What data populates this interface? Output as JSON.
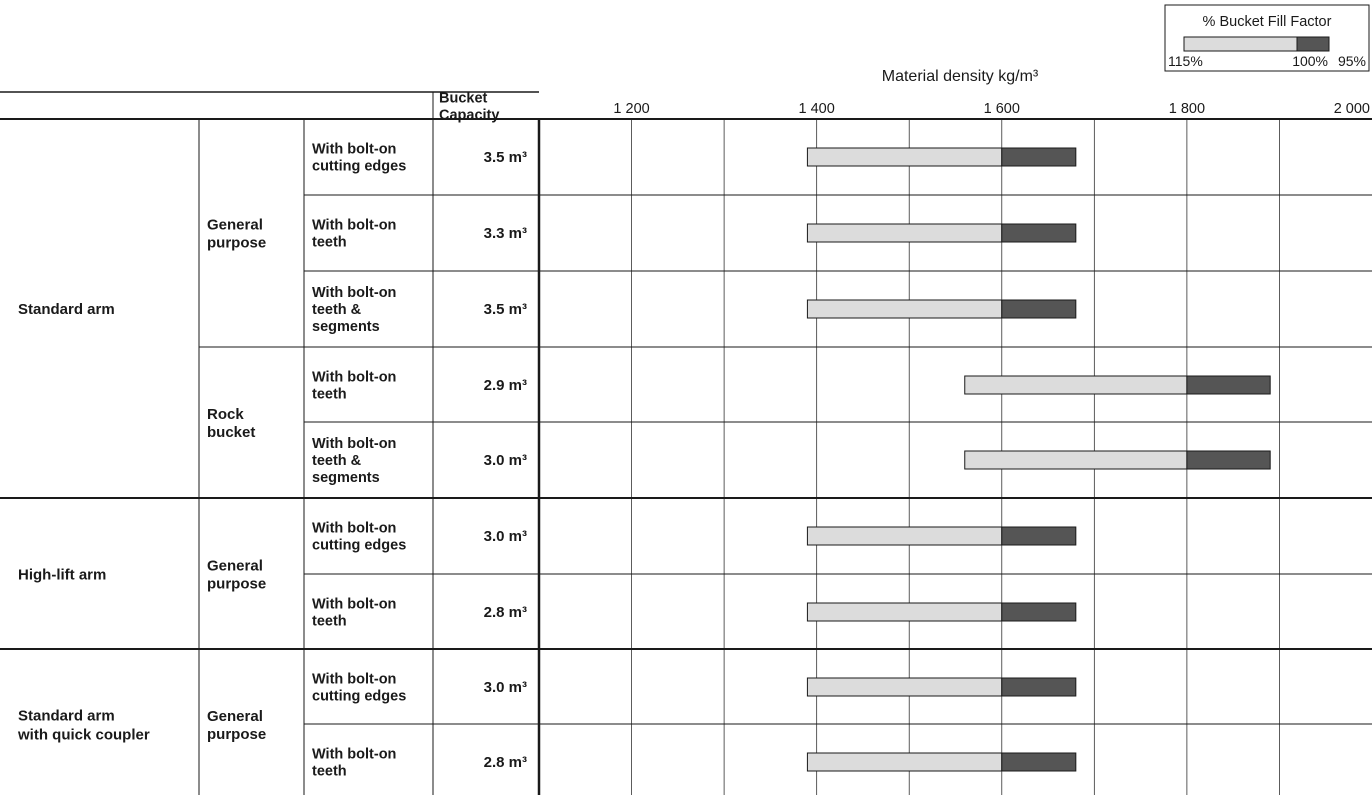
{
  "legend": {
    "title": "% Bucket Fill Factor",
    "labels": [
      "115%",
      "100%",
      "95%"
    ],
    "colors": {
      "fill_115": "#dcdcdc",
      "fill_95": "#555555",
      "border": "#1a1a1a"
    }
  },
  "table": {
    "header_capacity_line1": "Bucket",
    "header_capacity_line2": "Capacity",
    "groups": [
      {
        "arm": [
          "Standard arm"
        ],
        "subgroups": [
          {
            "type": [
              "General",
              "purpose"
            ],
            "rows": [
              0,
              1,
              2
            ]
          },
          {
            "type": [
              "Rock",
              "bucket"
            ],
            "rows": [
              3,
              4
            ]
          }
        ]
      },
      {
        "arm": [
          "High-lift arm"
        ],
        "subgroups": [
          {
            "type": [
              "General",
              "purpose"
            ],
            "rows": [
              5,
              6
            ]
          }
        ]
      },
      {
        "arm": [
          "Standard arm",
          "with quick coupler"
        ],
        "subgroups": [
          {
            "type": [
              "General",
              "purpose"
            ],
            "rows": [
              7,
              8
            ]
          }
        ]
      }
    ],
    "rows": [
      {
        "config": [
          "With bolt-on",
          "cutting edges"
        ],
        "capacity": "3.5 m³"
      },
      {
        "config": [
          "With bolt-on",
          "teeth"
        ],
        "capacity": "3.3 m³"
      },
      {
        "config": [
          "With bolt-on",
          "teeth &",
          "segments"
        ],
        "capacity": "3.5 m³"
      },
      {
        "config": [
          "With bolt-on",
          "teeth"
        ],
        "capacity": "2.9 m³"
      },
      {
        "config": [
          "With bolt-on",
          "teeth &",
          "segments"
        ],
        "capacity": "3.0 m³"
      },
      {
        "config": [
          "With bolt-on",
          "cutting edges"
        ],
        "capacity": "3.0 m³"
      },
      {
        "config": [
          "With bolt-on",
          "teeth"
        ],
        "capacity": "2.8 m³"
      },
      {
        "config": [
          "With bolt-on",
          "cutting edges"
        ],
        "capacity": "3.0 m³"
      },
      {
        "config": [
          "With bolt-on",
          "teeth"
        ],
        "capacity": "2.8 m³"
      }
    ]
  },
  "chart_data": {
    "type": "bar",
    "orientation": "horizontal",
    "xlabel": "Material density kg/m³",
    "xlim": [
      1100,
      2000
    ],
    "xticks": [
      1200,
      1400,
      1600,
      1800,
      2000
    ],
    "xtick_labels": [
      "1 200",
      "1 400",
      "1 600",
      "1 800",
      "2 000"
    ],
    "grid": true,
    "legend_position": "top-right",
    "series": [
      {
        "name": "115%",
        "color": "#dcdcdc"
      },
      {
        "name": "95%",
        "color": "#555555"
      }
    ],
    "bars": [
      {
        "density_115": 1390,
        "density_100": 1600,
        "density_95": 1680
      },
      {
        "density_115": 1390,
        "density_100": 1600,
        "density_95": 1680
      },
      {
        "density_115": 1390,
        "density_100": 1600,
        "density_95": 1680
      },
      {
        "density_115": 1560,
        "density_100": 1800,
        "density_95": 1890
      },
      {
        "density_115": 1560,
        "density_100": 1800,
        "density_95": 1890
      },
      {
        "density_115": 1390,
        "density_100": 1600,
        "density_95": 1680
      },
      {
        "density_115": 1390,
        "density_100": 1600,
        "density_95": 1680
      },
      {
        "density_115": 1390,
        "density_100": 1600,
        "density_95": 1680
      },
      {
        "density_115": 1390,
        "density_100": 1600,
        "density_95": 1680
      }
    ]
  }
}
